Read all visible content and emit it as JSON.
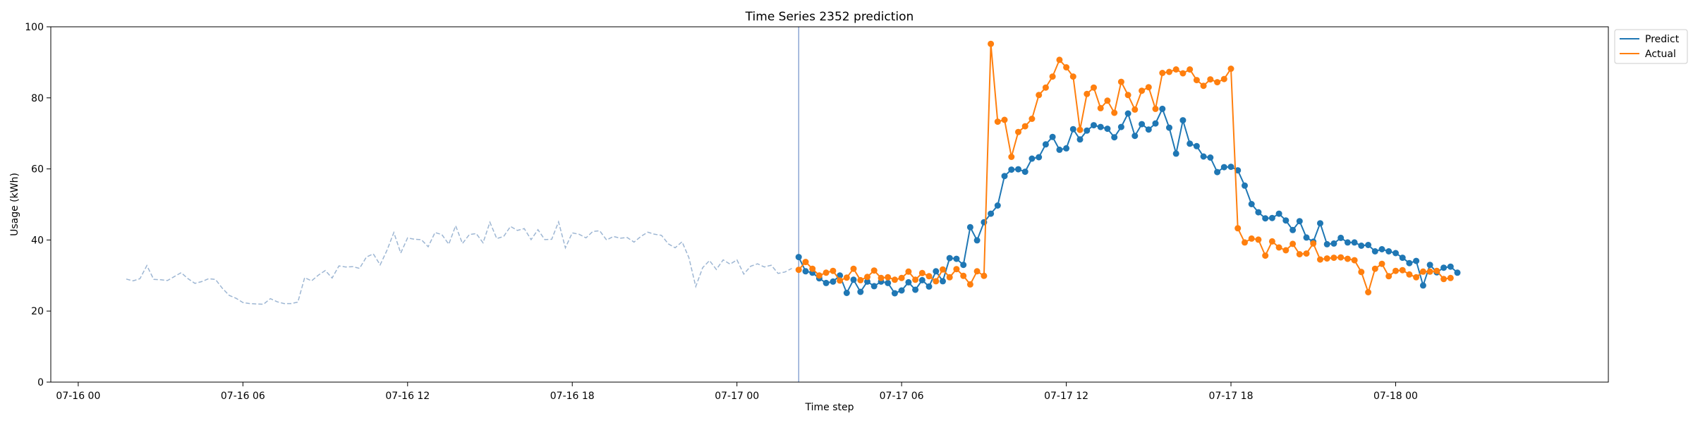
{
  "chart_data": {
    "type": "line",
    "title": "Time Series 2352 prediction",
    "xlabel": "Time step",
    "ylabel": "Usage (kWh)",
    "ylim": [
      0,
      100
    ],
    "yticks": [
      0,
      20,
      40,
      60,
      80,
      100
    ],
    "x_index_range": [
      -4,
      223
    ],
    "xticks": [
      {
        "index": 0,
        "label": "07-16 00"
      },
      {
        "index": 24,
        "label": "07-16 06"
      },
      {
        "index": 48,
        "label": "07-16 12"
      },
      {
        "index": 72,
        "label": "07-16 18"
      },
      {
        "index": 96,
        "label": "07-17 00"
      },
      {
        "index": 120,
        "label": "07-17 06"
      },
      {
        "index": 144,
        "label": "07-17 12"
      },
      {
        "index": 168,
        "label": "07-17 18"
      },
      {
        "index": 192,
        "label": "07-18 00"
      }
    ],
    "split_index": 105,
    "history": {
      "start_index": 7,
      "color": "#9db6d3",
      "values": [
        29.0,
        28.5,
        29.1,
        32.8,
        28.9,
        28.8,
        28.6,
        29.7,
        30.8,
        29.1,
        27.8,
        28.3,
        29.1,
        28.9,
        26.4,
        24.4,
        23.6,
        22.4,
        22.1,
        22.0,
        21.9,
        23.5,
        22.6,
        22.1,
        22.1,
        22.5,
        29.4,
        28.5,
        30.1,
        31.4,
        29.3,
        32.7,
        32.4,
        32.5,
        32.0,
        35.2,
        36.1,
        33.0,
        37.1,
        42.1,
        36.3,
        40.6,
        40.2,
        40.1,
        38.1,
        42.1,
        41.5,
        38.8,
        44.0,
        39.0,
        41.5,
        41.8,
        39.2,
        45.0,
        40.4,
        41.0,
        43.8,
        42.7,
        43.2,
        40.1,
        42.9,
        40.1,
        40.2,
        45.1,
        37.8,
        42.0,
        41.6,
        40.6,
        42.4,
        42.6,
        40.0,
        41.0,
        40.5,
        40.7,
        39.4,
        41.0,
        42.2,
        41.6,
        41.3,
        38.9,
        37.8,
        39.5,
        35.0,
        26.9,
        32.2,
        34.2,
        31.7,
        34.4,
        33.2,
        34.4,
        30.4,
        32.6,
        33.3,
        32.4,
        32.9,
        30.6,
        31.0,
        32.0
      ]
    },
    "series": [
      {
        "name": "Predict",
        "color": "#1f77b4",
        "start_index": 105,
        "values": [
          35.2,
          31.2,
          30.8,
          29.2,
          27.9,
          28.3,
          30.0,
          25.1,
          28.8,
          25.4,
          28.3,
          27.0,
          28.3,
          27.9,
          25.0,
          25.8,
          28.1,
          26.0,
          28.7,
          26.9,
          31.2,
          28.4,
          34.9,
          34.7,
          33.0,
          43.6,
          39.9,
          45.0,
          47.4,
          49.7,
          58.0,
          59.8,
          59.9,
          59.2,
          62.9,
          63.3,
          66.9,
          69.0,
          65.4,
          65.8,
          71.2,
          68.3,
          70.8,
          72.3,
          71.8,
          71.3,
          68.9,
          71.8,
          75.6,
          69.3,
          72.6,
          71.1,
          72.8,
          76.9,
          71.6,
          64.3,
          73.7,
          67.1,
          66.4,
          63.5,
          63.2,
          59.1,
          60.5,
          60.6,
          59.6,
          55.3,
          50.1,
          47.8,
          46.1,
          46.2,
          47.4,
          45.5,
          42.8,
          45.3,
          40.7,
          39.5,
          44.7,
          38.8,
          39.0,
          40.6,
          39.3,
          39.3,
          38.4,
          38.6,
          36.8,
          37.4,
          36.8,
          36.3,
          35.0,
          33.5,
          34.1,
          27.2,
          33.0,
          30.9,
          32.2,
          32.5,
          30.8
        ]
      },
      {
        "name": "Actual",
        "color": "#ff7f0e",
        "start_index": 105,
        "values": [
          31.6,
          33.8,
          31.9,
          30.0,
          30.8,
          31.3,
          28.6,
          29.4,
          31.9,
          28.7,
          29.6,
          31.4,
          29.3,
          29.5,
          28.8,
          29.3,
          31.1,
          28.8,
          30.7,
          29.8,
          28.4,
          31.7,
          29.5,
          31.8,
          29.9,
          27.5,
          31.2,
          29.9,
          95.2,
          73.3,
          73.8,
          63.4,
          70.4,
          72.0,
          74.1,
          80.8,
          82.9,
          86.0,
          90.7,
          88.6,
          86.0,
          71.0,
          81.1,
          82.9,
          77.1,
          79.2,
          75.8,
          84.5,
          80.8,
          76.7,
          82.0,
          83.0,
          76.9,
          87.0,
          87.3,
          88.0,
          86.9,
          88.0,
          85.0,
          83.4,
          85.2,
          84.4,
          85.3,
          88.2,
          43.3,
          39.3,
          40.4,
          40.1,
          35.6,
          39.6,
          37.9,
          37.1,
          38.9,
          36.0,
          36.2,
          39.0,
          34.5,
          34.8,
          35.0,
          35.1,
          34.7,
          34.3,
          31.0,
          25.3,
          31.9,
          33.3,
          29.8,
          31.3,
          31.5,
          30.3,
          29.5,
          31.1,
          31.1,
          31.3,
          29.0,
          29.3
        ]
      }
    ],
    "legend": {
      "position": "top-right (outside)",
      "entries": [
        "Predict",
        "Actual"
      ]
    }
  }
}
